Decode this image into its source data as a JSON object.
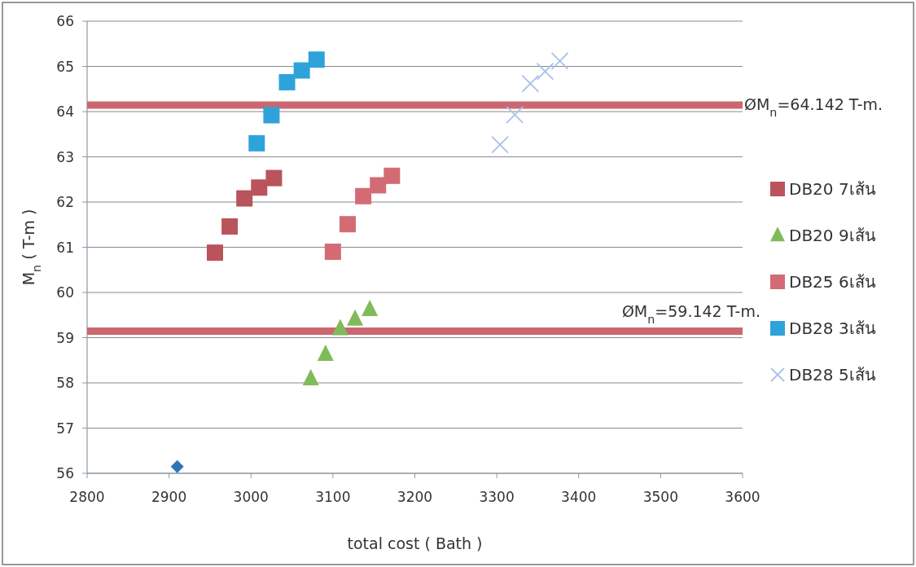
{
  "chart_data": {
    "type": "scatter",
    "xlabel": "total cost ( Bath )",
    "ylabel": "M$_{n}$ ( T-m )",
    "xlim": [
      2800,
      3600
    ],
    "xticks": [
      2800,
      2900,
      3000,
      3100,
      3200,
      3300,
      3400,
      3500,
      3600
    ],
    "ylim": [
      56,
      66
    ],
    "yticks": [
      56,
      57,
      58,
      59,
      60,
      61,
      62,
      63,
      64,
      65,
      66
    ],
    "grid": "y",
    "legend": "right",
    "series": [
      {
        "name": "DB20 7เส้น",
        "color": "#b9545c",
        "marker": "square",
        "x": [
          2956,
          2974,
          2992,
          3010,
          3028
        ],
        "values": [
          60.88,
          61.46,
          62.08,
          62.32,
          62.53
        ]
      },
      {
        "name": "DB20 9เส้น",
        "color": "#80bb5a",
        "marker": "triangle",
        "x": [
          3073,
          3091,
          3109,
          3127,
          3145
        ],
        "values": [
          58.09,
          58.63,
          59.2,
          59.41,
          59.62
        ]
      },
      {
        "name": "DB25 6เส้น",
        "color": "#d46b74",
        "marker": "square",
        "x": [
          3100,
          3118,
          3137,
          3155,
          3172
        ],
        "values": [
          60.9,
          61.51,
          62.13,
          62.37,
          62.58
        ]
      },
      {
        "name": "DB28 3เส้น",
        "color": "#2ea3db",
        "marker": "square",
        "x": [
          3007,
          3025,
          3044,
          3062,
          3080
        ],
        "values": [
          63.3,
          63.92,
          64.65,
          64.91,
          65.15
        ]
      },
      {
        "name": "DB28 5เส้น",
        "color": "#a9c1e8",
        "marker": "cross",
        "x": [
          3304,
          3322,
          3341,
          3359,
          3377
        ],
        "values": [
          63.27,
          63.93,
          64.62,
          64.89,
          65.12
        ]
      },
      {
        "color": "#2e75b6",
        "marker": "diamond",
        "x": [
          2910
        ],
        "values": [
          56.15
        ]
      }
    ],
    "ref_lines": [
      {
        "axis": "y",
        "value": 64.142,
        "label": "ØM$_{n}$=64.142 T-m.",
        "color": "#cc6670"
      },
      {
        "axis": "y",
        "value": 59.142,
        "label": "ØM$_{n}$=59.142 T-m.",
        "color": "#cc6670"
      }
    ]
  }
}
